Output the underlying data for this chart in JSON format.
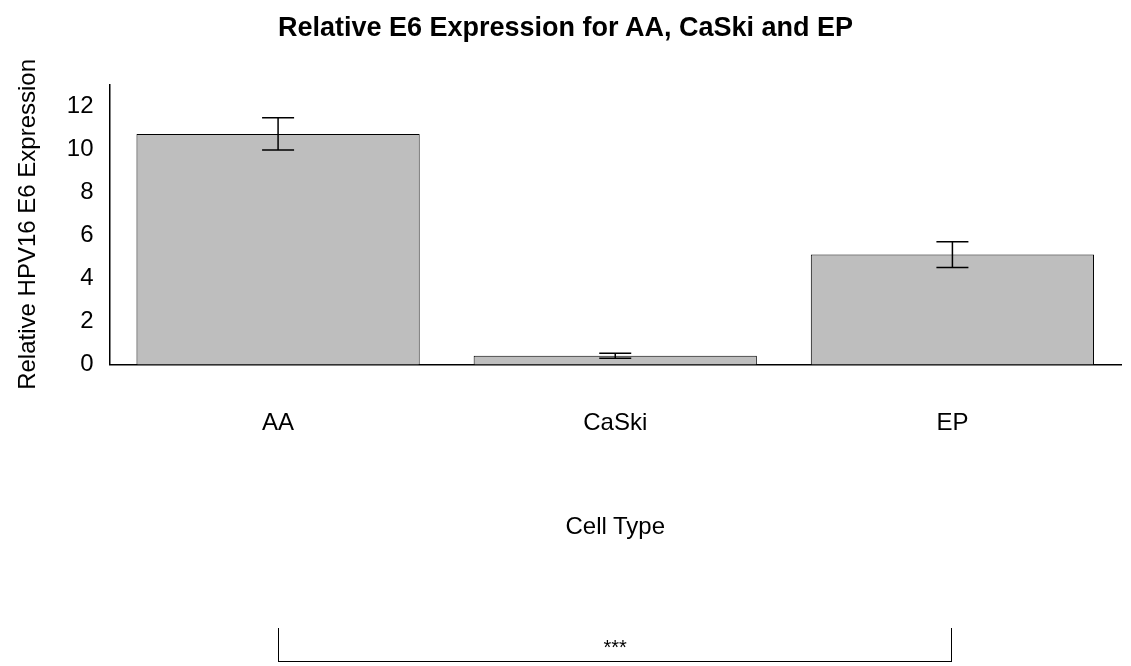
{
  "chart_data": {
    "type": "bar",
    "title": "Relative E6 Expression for AA, CaSki and EP",
    "xlabel": "Cell Type",
    "ylabel": "Relative HPV16 E6 Expression",
    "categories": [
      "AA",
      "CaSki",
      "EP"
    ],
    "values": [
      10.7,
      0.4,
      5.1
    ],
    "errors": [
      0.75,
      0.12,
      0.6
    ],
    "color": "#bebebe",
    "ylim": [
      0,
      13
    ],
    "yticks": [
      0,
      2,
      4,
      6,
      8,
      10,
      12
    ],
    "grid": false,
    "legend": false,
    "annotations": [
      "***"
    ]
  }
}
